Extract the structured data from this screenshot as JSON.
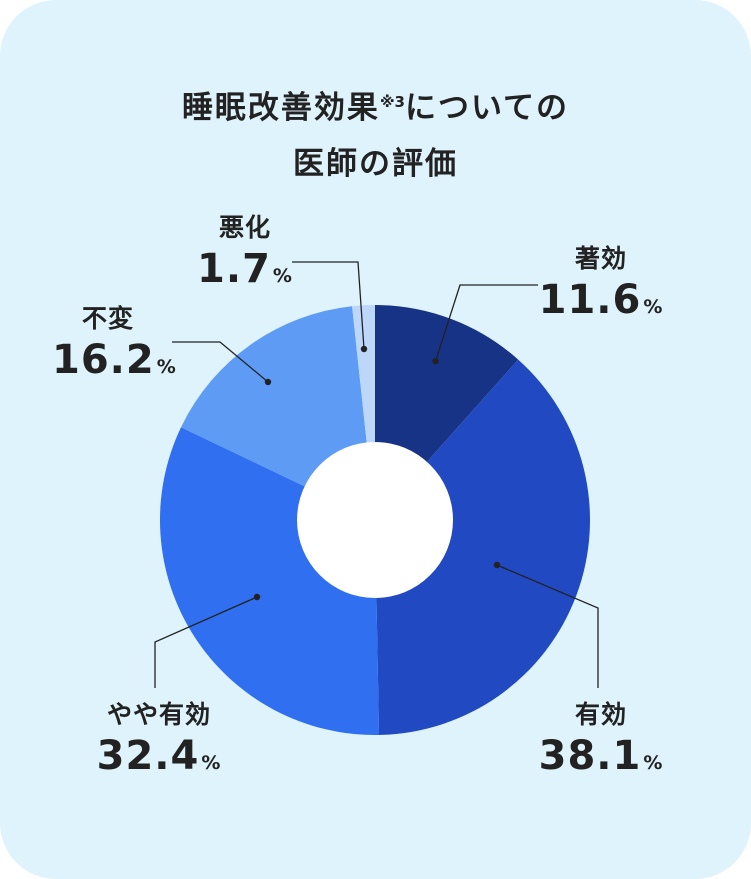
{
  "title": {
    "line1": "睡眠改善効果",
    "note": "※3",
    "line1_suffix": "についての",
    "line2": "医師の評価"
  },
  "colors": {
    "background": "#def3fb",
    "connector": "#222222"
  },
  "chart_data": {
    "type": "pie",
    "unit": "%",
    "slices": [
      {
        "label": "著効",
        "value": 11.6,
        "display": "11.6",
        "color": "#173385"
      },
      {
        "label": "有効",
        "value": 38.1,
        "display": "38.1",
        "color": "#2149c2"
      },
      {
        "label": "やや有効",
        "value": 32.4,
        "display": "32.4",
        "color": "#2f6ff0"
      },
      {
        "label": "不変",
        "value": 16.2,
        "display": "16.2",
        "color": "#5d9bf5"
      },
      {
        "label": "悪化",
        "value": 1.7,
        "display": "1.7",
        "color": "#bcd7f9"
      }
    ]
  }
}
